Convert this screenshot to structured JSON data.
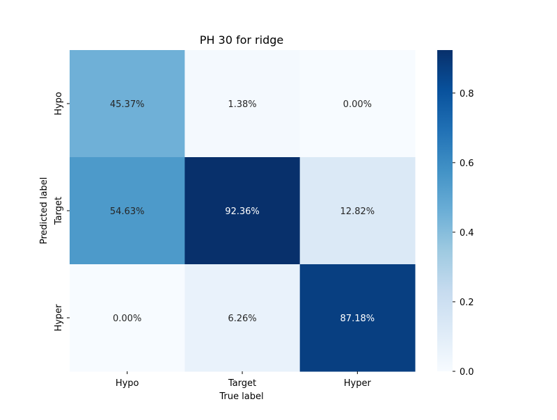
{
  "chart_data": {
    "type": "heatmap",
    "title": "PH 30 for ridge",
    "xlabel": "True label",
    "ylabel": "Predicted label",
    "x_categories": [
      "Hypo",
      "Target",
      "Hyper"
    ],
    "y_categories": [
      "Hypo",
      "Target",
      "Hyper"
    ],
    "values": [
      [
        0.4537,
        0.0138,
        0.0
      ],
      [
        0.5463,
        0.9236,
        0.1282
      ],
      [
        0.0,
        0.0626,
        0.8718
      ]
    ],
    "cell_labels": [
      [
        "45.37%",
        "1.38%",
        "0.00%"
      ],
      [
        "54.63%",
        "92.36%",
        "12.82%"
      ],
      [
        "0.00%",
        "6.26%",
        "87.18%"
      ]
    ],
    "colormap": "Blues",
    "vmin": 0.0,
    "vmax": 0.9236,
    "colorbar": {
      "ticks": [
        0.0,
        0.2,
        0.4,
        0.6,
        0.8
      ],
      "tick_labels": [
        "0.0",
        "0.2",
        "0.4",
        "0.6",
        "0.8"
      ]
    },
    "grid": false,
    "legend": "colorbar-right"
  }
}
